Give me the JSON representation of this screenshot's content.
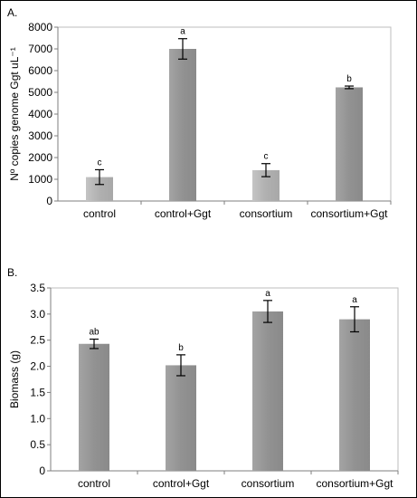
{
  "chart_data": [
    {
      "type": "bar",
      "panel_label": "A.",
      "categories": [
        "control",
        "control+Ggt",
        "consortium",
        "consortium+Ggt"
      ],
      "values": [
        1100,
        7000,
        1420,
        5230
      ],
      "errors": [
        340,
        470,
        300,
        60
      ],
      "significance": [
        "c",
        "a",
        "c",
        "b"
      ],
      "ylabel": "Nº copies genome Ggt uL⁻¹",
      "ylim": [
        0,
        8000
      ],
      "yticks": [
        0,
        1000,
        2000,
        3000,
        4000,
        5000,
        6000,
        7000,
        8000
      ],
      "ytick_labels": [
        "0",
        "1000",
        "2000",
        "3000",
        "4000",
        "5000",
        "6000",
        "7000",
        "8000"
      ],
      "grid": false,
      "bar_colors": [
        "#b8b8b8",
        "#9a9a9a",
        "#b8b8b8",
        "#9a9a9a"
      ]
    },
    {
      "type": "bar",
      "panel_label": "B.",
      "categories": [
        "control",
        "control+Ggt",
        "consortium",
        "consortium+Ggt"
      ],
      "values": [
        2.43,
        2.02,
        3.05,
        2.9
      ],
      "errors": [
        0.09,
        0.2,
        0.21,
        0.24
      ],
      "significance": [
        "ab",
        "b",
        "a",
        "a"
      ],
      "ylabel": "Biomass (g)",
      "ylim": [
        0,
        3.5
      ],
      "yticks": [
        0,
        0.5,
        1.0,
        1.5,
        2.0,
        2.5,
        3.0,
        3.5
      ],
      "ytick_labels": [
        "0",
        "0.5",
        "1.0",
        "1.5",
        "2.0",
        "2.5",
        "3.0",
        "3.5"
      ],
      "grid": false,
      "bar_colors": [
        "#9a9a9a",
        "#9a9a9a",
        "#9a9a9a",
        "#9a9a9a"
      ]
    }
  ]
}
